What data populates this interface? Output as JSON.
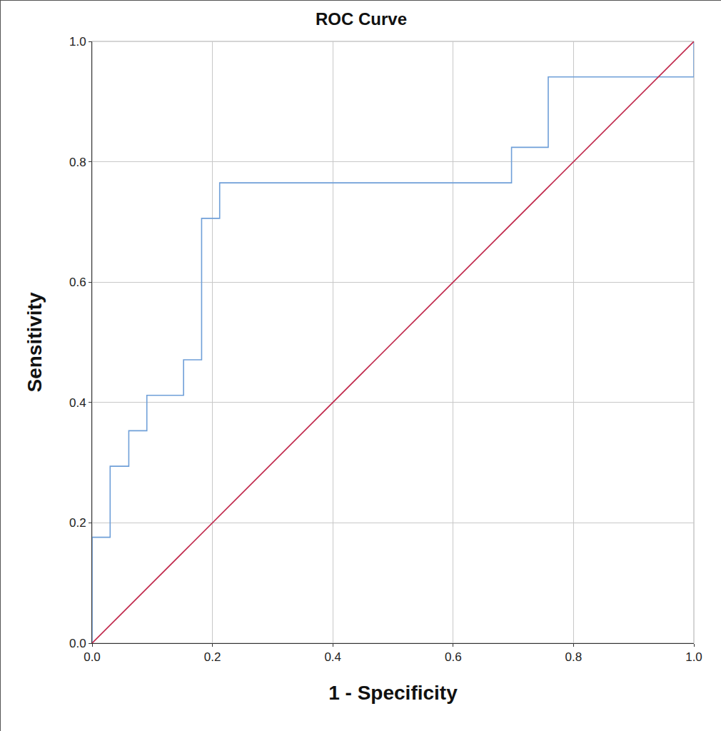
{
  "chart_data": {
    "type": "line",
    "title": "ROC Curve",
    "x_label": "1 - Specificity",
    "y_label": "Sensitivity",
    "xlim": [
      0,
      1
    ],
    "ylim": [
      0,
      1
    ],
    "xticks": [
      {
        "value": 0,
        "label": "0.0"
      },
      0.2,
      0.4,
      0.6,
      0.8,
      {
        "value": 1,
        "label": "1.0"
      }
    ],
    "yticks": [
      {
        "value": 0,
        "label": "0.0"
      },
      0.2,
      0.4,
      0.6,
      0.8,
      {
        "value": 1,
        "label": "1.0"
      }
    ],
    "grid": true,
    "series": [
      {
        "color": "#6f9fd8",
        "line_style": "solid",
        "x": [
          0,
          0,
          0.03,
          0.03,
          0.061,
          0.061,
          0.091,
          0.091,
          0.152,
          0.152,
          0.182,
          0.182,
          0.212,
          0.212,
          0.697,
          0.697,
          0.758,
          0.758,
          1,
          1
        ],
        "values": [
          0,
          0.176,
          0.176,
          0.294,
          0.294,
          0.353,
          0.353,
          0.412,
          0.412,
          0.471,
          0.471,
          0.706,
          0.706,
          0.765,
          0.765,
          0.824,
          0.824,
          0.941,
          0.941,
          1
        ]
      },
      {
        "color": "#c0284b",
        "line_style": "solid",
        "x": [
          0,
          1
        ],
        "values": [
          0,
          1
        ]
      }
    ]
  }
}
